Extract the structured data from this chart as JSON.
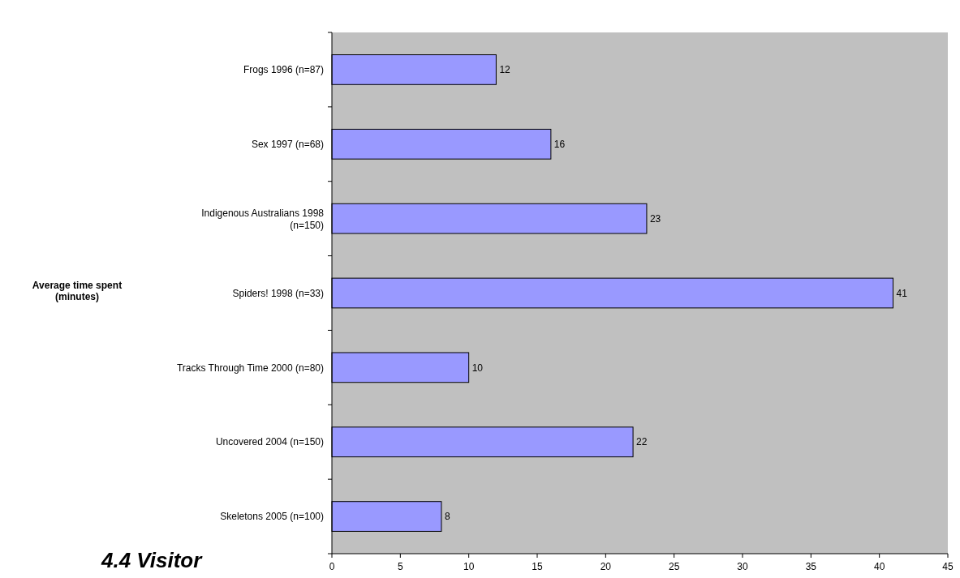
{
  "chart_data": {
    "type": "bar",
    "orientation": "horizontal",
    "title": "4.4  Visitor",
    "annotations": [
      "Average time spent (minutes)"
    ],
    "categories": [
      "Frogs 1996 (n=87)",
      "Sex 1997 (n=68)",
      "Indigenous Australians 1998 (n=150)",
      "Spiders! 1998 (n=33)",
      "Tracks Through Time 2000 (n=80)",
      "Uncovered 2004 (n=150)",
      "Skeletons 2005 (n=100)"
    ],
    "values": [
      12,
      16,
      23,
      41,
      10,
      22,
      8
    ],
    "color": "#9999ff",
    "data_labels": true,
    "xlim": [
      0,
      45
    ],
    "xticks": [
      0,
      5,
      10,
      15,
      20,
      25,
      30,
      35,
      40,
      45
    ],
    "grid": false
  }
}
